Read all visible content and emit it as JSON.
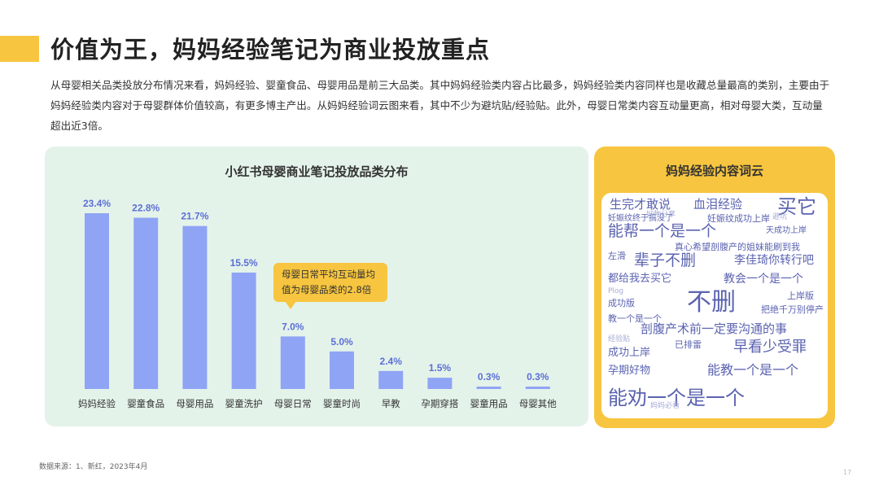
{
  "header": {
    "title": "价值为王，妈妈经验笔记为商业投放重点"
  },
  "intro": "从母婴相关品类投放分布情况来看，妈妈经验、婴童食品、母婴用品是前三大品类。其中妈妈经验类内容占比最多，妈妈经验类内容同样也是收藏总量最高的类别，主要由于妈妈经验类内容对于母婴群体价值较高，有更多博主产出。从妈妈经验词云图来看，其中不少为避坑贴/经验贴。此外，母婴日常类内容互动量更高，相对母婴大类，互动量超出近3倍。",
  "chart_data": {
    "type": "bar",
    "title": "小红书母婴商业笔记投放品类分布",
    "categories": [
      "妈妈经验",
      "婴童食品",
      "母婴用品",
      "婴童洗护",
      "母婴日常",
      "婴童时尚",
      "早教",
      "孕期穿搭",
      "婴童用品",
      "母婴其他"
    ],
    "values": [
      23.4,
      22.8,
      21.7,
      15.5,
      7.0,
      5.0,
      2.4,
      1.5,
      0.3,
      0.3
    ],
    "value_labels": [
      "23.4%",
      "22.8%",
      "21.7%",
      "15.5%",
      "7.0%",
      "5.0%",
      "2.4%",
      "1.5%",
      "0.3%",
      "0.3%"
    ],
    "xlabel": "",
    "ylabel": "",
    "ylim": [
      0,
      25
    ],
    "grid": false,
    "bar_color": "#8fa4f4",
    "label_color": "#5b6fd6",
    "annotation": "母婴日常平均互动量均值为母婴品类的2.8倍"
  },
  "wordcloud": {
    "title": "妈妈经验内容词云",
    "words": [
      "生完才敢说",
      "血泪经验",
      "买它",
      "妊娠纹终于搞没了",
      "妊娠纹成功上岸",
      "能帮一个是一个",
      "天成功上岸",
      "真心希望剖腹产的姐妹能刷到我",
      "左滑",
      "辈子不删",
      "李佳琦你转行吧",
      "都给我去买它",
      "教会一个是一个",
      "不删",
      "上岸版",
      "成功版",
      "把绝千万别停产",
      "教一个是一个",
      "剖腹产术前一定要沟通的事",
      "早看少受罪",
      "已排雷",
      "成功上岸",
      "孕期好物",
      "能教一个是一个",
      "能劝一个是一个",
      "好物分享",
      "避坑",
      "Plog",
      "经验贴",
      "妈妈必看"
    ]
  },
  "footer": {
    "source": "数据来源：1、新红，2023年4月",
    "page": "17"
  },
  "colors": {
    "accent": "#f7c53f",
    "chart_bg": "#e4f3ea",
    "bar": "#8fa4f4",
    "cloud_word": "#5b63b0"
  }
}
